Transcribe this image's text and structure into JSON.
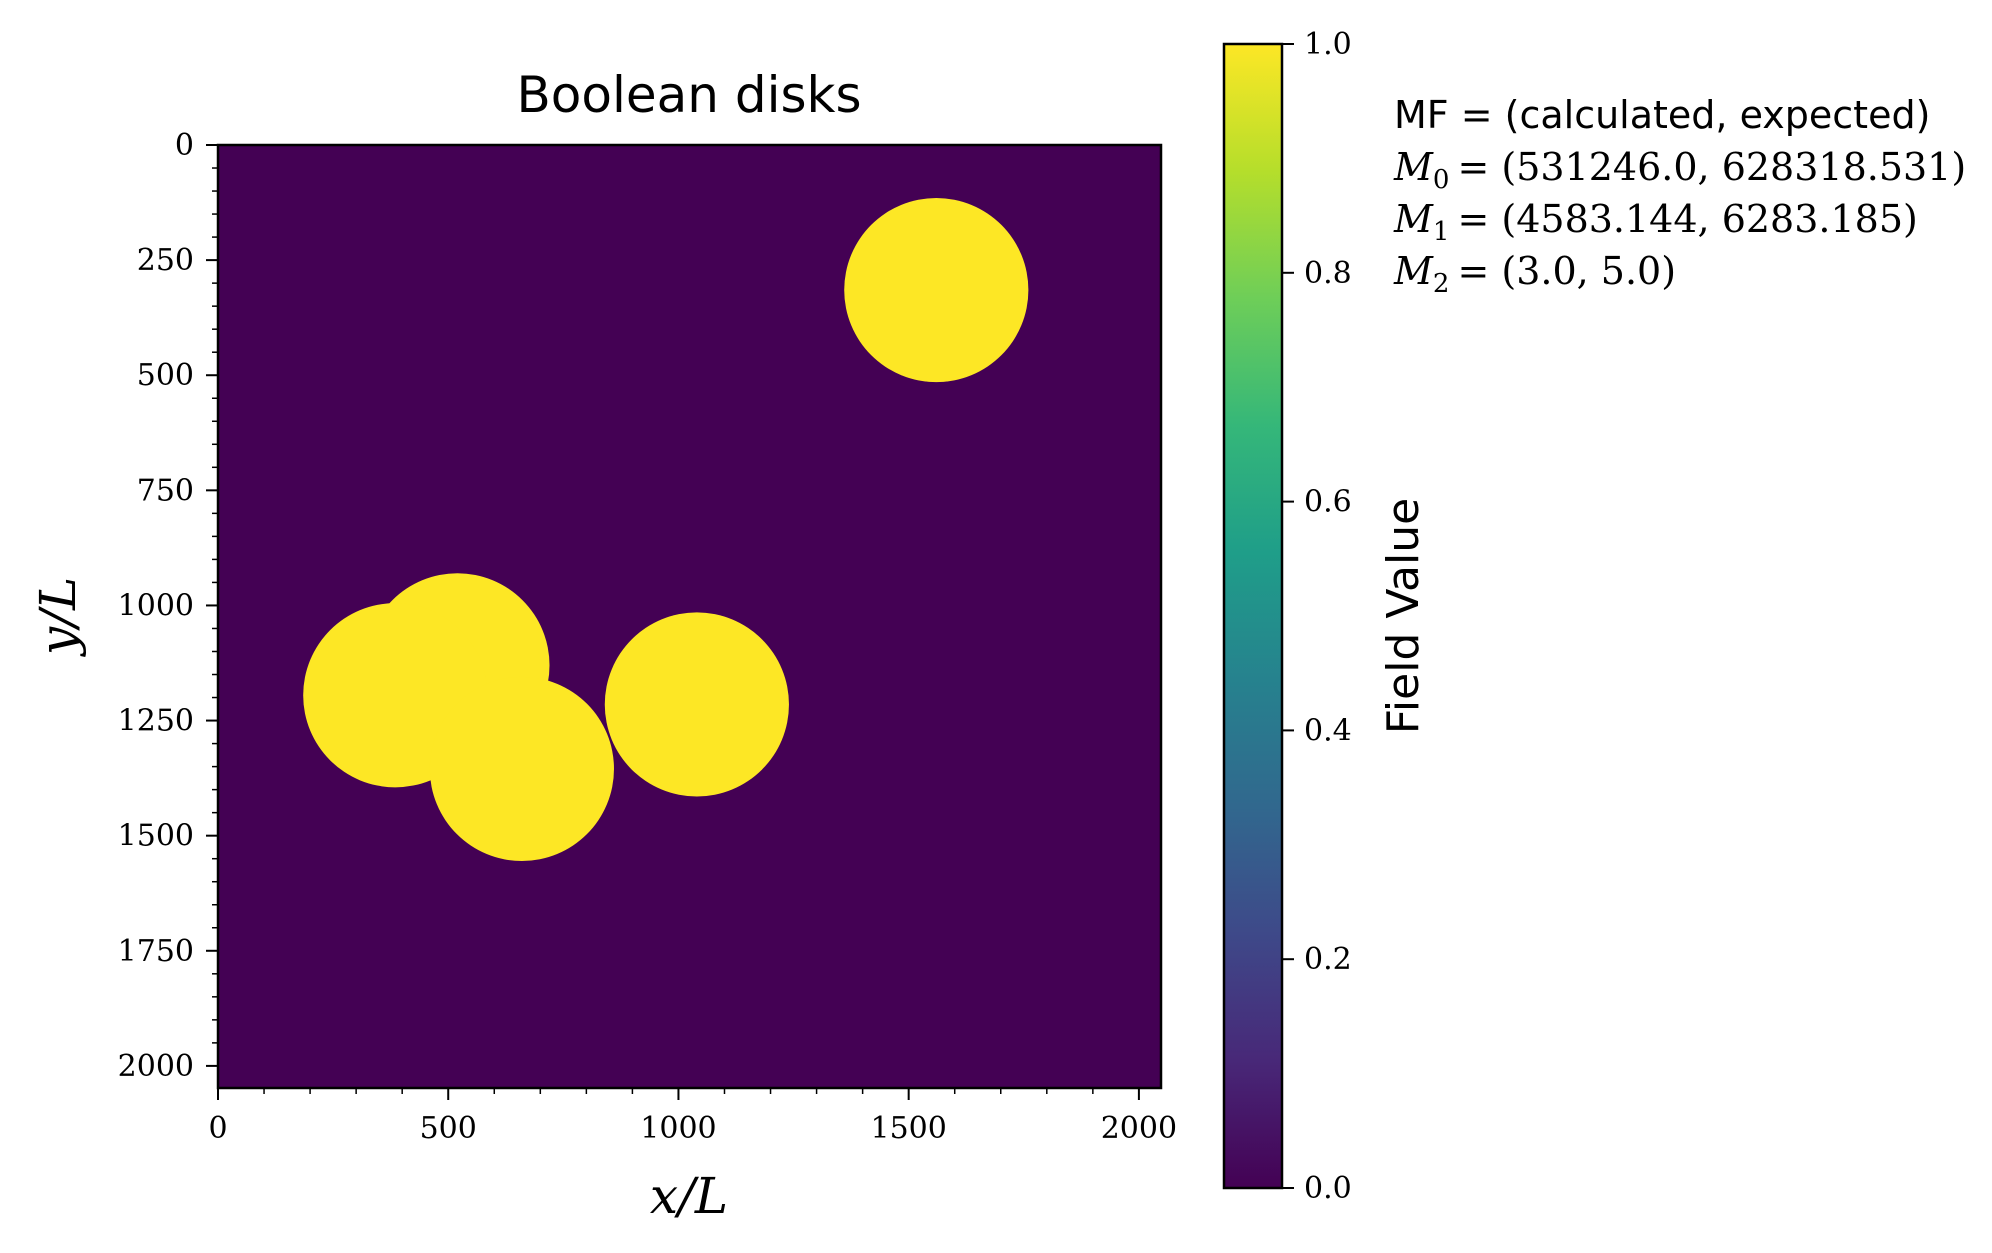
{
  "chart_data": {
    "type": "heatmap",
    "title": "Boolean disks",
    "xlabel": "x/L",
    "ylabel": "y/L",
    "xlim": [
      0,
      2048
    ],
    "ylim": [
      2048,
      0
    ],
    "x_ticks": [
      0,
      500,
      1000,
      1500,
      2000
    ],
    "y_ticks": [
      0,
      250,
      500,
      750,
      1000,
      1250,
      1500,
      1750,
      2000
    ],
    "field": {
      "background_value": 0.0,
      "disk_value": 1.0,
      "disk_radius": 200,
      "disks": [
        {
          "x": 1560,
          "y": 315
        },
        {
          "x": 520,
          "y": 1130
        },
        {
          "x": 385,
          "y": 1195
        },
        {
          "x": 660,
          "y": 1355
        },
        {
          "x": 1040,
          "y": 1215
        }
      ]
    },
    "colorbar": {
      "label": "Field Value",
      "colormap": "viridis",
      "range": [
        0.0,
        1.0
      ],
      "ticks": [
        "0.0",
        "0.2",
        "0.4",
        "0.6",
        "0.8",
        "1.0"
      ],
      "colors": [
        "#440154",
        "#482878",
        "#3e4989",
        "#31688e",
        "#26828e",
        "#1f9e89",
        "#35b779",
        "#6ece58",
        "#b5de2b",
        "#fde725"
      ]
    },
    "annotation": {
      "header": "MF = (calculated, expected)",
      "lines": [
        {
          "symbol": "M",
          "sub": "0",
          "value": "= (531246.0, 628318.531)"
        },
        {
          "symbol": "M",
          "sub": "1",
          "value": "= (4583.144, 6283.185)"
        },
        {
          "symbol": "M",
          "sub": "2",
          "value": "= (3.0, 5.0)"
        }
      ]
    }
  }
}
